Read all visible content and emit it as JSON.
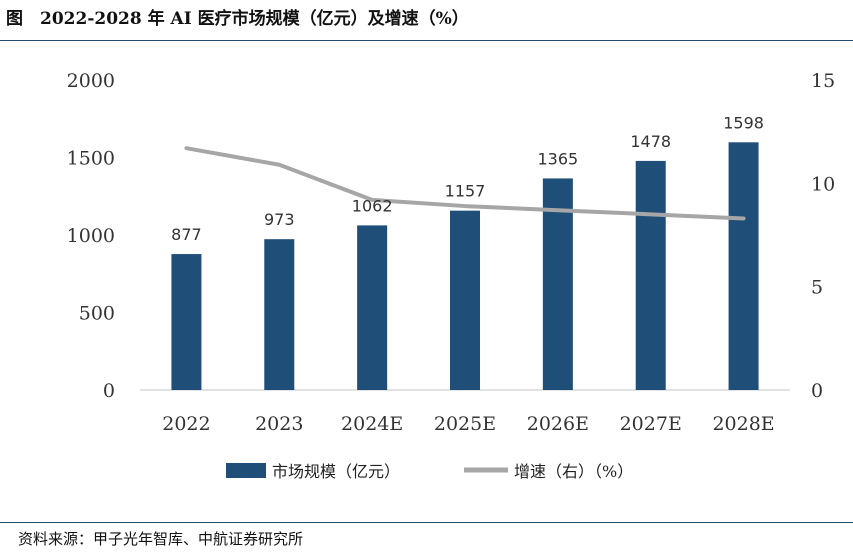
{
  "title": "图　2022-2028 年 AI 医疗市场规模（亿元）及增速（%）",
  "source": "资料来源：甲子光年智库、中航证券研究所",
  "colors": {
    "bar": "#1f4e79",
    "line": "#a6a6a6",
    "rule": "#1f4e66"
  },
  "chart_data": {
    "type": "bar",
    "categories": [
      "2022",
      "2023",
      "2024E",
      "2025E",
      "2026E",
      "2027E",
      "2028E"
    ],
    "series": [
      {
        "name": "市场规模（亿元）",
        "type": "bar",
        "axis": "left",
        "values": [
          877,
          973,
          1062,
          1157,
          1365,
          1478,
          1598
        ]
      },
      {
        "name": "增速（右）（%）",
        "type": "line",
        "axis": "right",
        "values": [
          11.7,
          10.9,
          9.2,
          8.9,
          8.7,
          8.5,
          8.3
        ]
      }
    ],
    "ylim": [
      0,
      2000
    ],
    "yticks": [
      0,
      500,
      1000,
      1500,
      2000
    ],
    "y2lim": [
      0,
      15
    ],
    "y2ticks": [
      0,
      5,
      10,
      15
    ],
    "legend_position": "bottom",
    "grid": false
  }
}
